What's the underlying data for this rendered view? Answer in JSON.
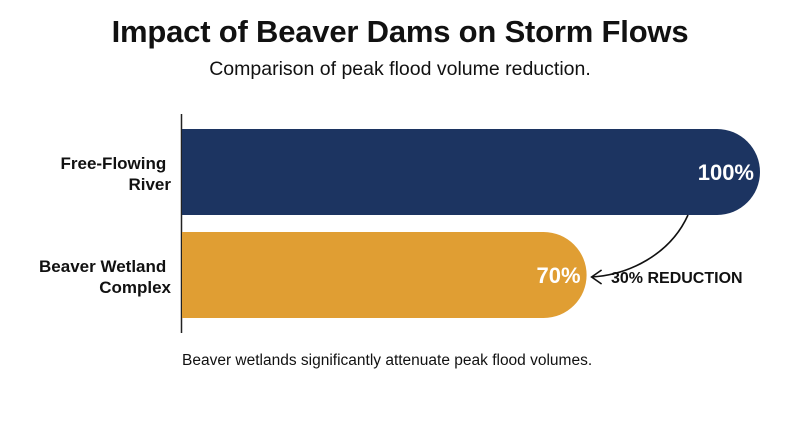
{
  "chart_data": {
    "type": "bar",
    "orientation": "horizontal",
    "title": "Impact of Beaver Dams on Storm Flows",
    "subtitle": "Comparison of peak flood volume reduction.",
    "categories": [
      {
        "lines": [
          "Free-Flowing",
          "River"
        ]
      },
      {
        "lines": [
          "Beaver Wetland",
          "Complex"
        ]
      }
    ],
    "values": [
      100,
      70
    ],
    "value_labels": [
      "100%",
      "70%"
    ],
    "colors": [
      "#1c3461",
      "#e09e33"
    ],
    "xlim": [
      0,
      100
    ],
    "grid": false,
    "legend": "none",
    "annotation": "30% REDUCTION",
    "caption": "Beaver wetlands significantly attenuate peak flood volumes."
  }
}
